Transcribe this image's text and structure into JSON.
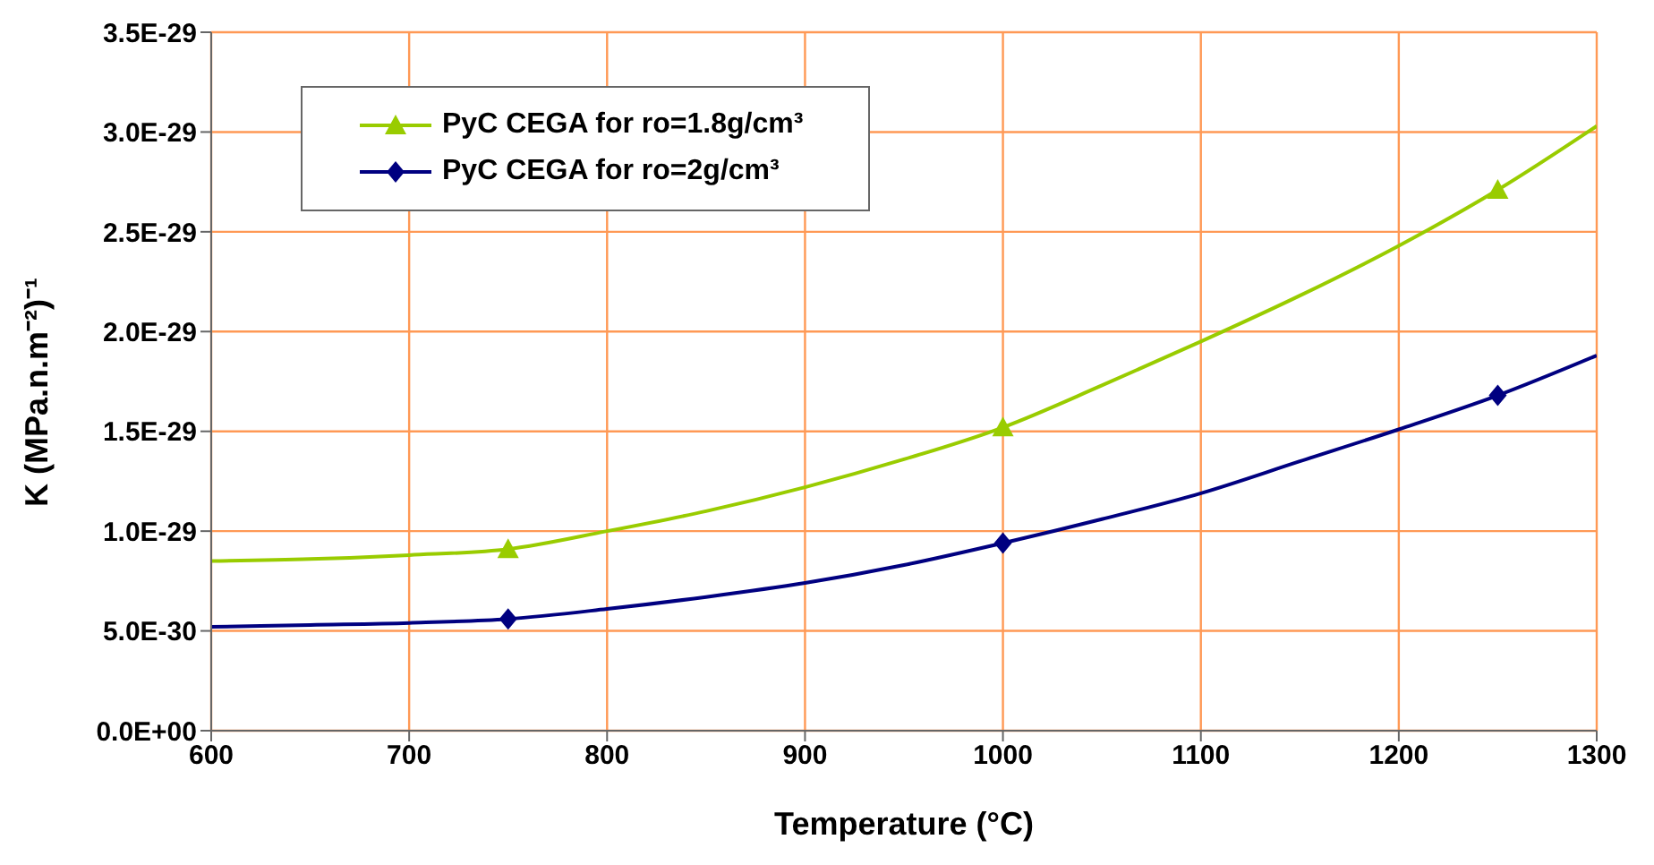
{
  "chart_data": {
    "type": "line",
    "xlabel": "Temperature (°C)",
    "ylabel": "K (MPa.n.m⁻²)⁻¹",
    "xlim": [
      600,
      1300
    ],
    "xticks": [
      600,
      700,
      800,
      900,
      1000,
      1100,
      1200,
      1300
    ],
    "ylim": [
      0,
      3.5e-29
    ],
    "yticks": [
      {
        "value": 0,
        "label": "0.0E+00"
      },
      {
        "value": 5e-30,
        "label": "5.0E-30"
      },
      {
        "value": 1e-29,
        "label": "1.0E-29"
      },
      {
        "value": 1.5e-29,
        "label": "1.5E-29"
      },
      {
        "value": 2e-29,
        "label": "2.0E-29"
      },
      {
        "value": 2.5e-29,
        "label": "2.5E-29"
      },
      {
        "value": 3e-29,
        "label": "3.0E-29"
      },
      {
        "value": 3.5e-29,
        "label": "3.5E-29"
      }
    ],
    "grid": true,
    "legend": "top left",
    "marker": "none",
    "series": [
      {
        "color": "#99cc00",
        "x": [
          600,
          650,
          700,
          750,
          800,
          850,
          900,
          950,
          1000,
          1050,
          1100,
          1150,
          1200,
          1250,
          1300
        ],
        "values": [
          8.5e-30,
          8.6e-30,
          8.8e-30,
          9.1e-30,
          1e-29,
          1.1e-29,
          1.22e-29,
          1.36e-29,
          1.52e-29,
          1.73e-29,
          1.95e-29,
          2.18e-29,
          2.43e-29,
          2.71e-29,
          3.03e-29
        ]
      },
      {
        "color": "#000080",
        "x": [
          600,
          650,
          700,
          750,
          800,
          850,
          900,
          950,
          1000,
          1050,
          1100,
          1150,
          1200,
          1250,
          1300
        ],
        "values": [
          5.2e-30,
          5.3e-30,
          5.4e-30,
          5.6e-30,
          6.1e-30,
          6.7e-30,
          7.4e-30,
          8.3e-30,
          9.4e-30,
          1.06e-29,
          1.19e-29,
          1.35e-29,
          1.51e-29,
          1.68e-29,
          1.88e-29
        ]
      },
      {
        "type": "scatter",
        "marker": "triangle",
        "name": "PyC CEGA for ro=1.8g/cm³",
        "color": "#99cc00",
        "x": [
          750,
          1000,
          1250
        ],
        "values": [
          9.1e-30,
          1.52e-29,
          2.71e-29
        ]
      },
      {
        "type": "scatter",
        "marker": "diamond",
        "name": "PyC CEGA for ro=2g/cm³",
        "color": "#000080",
        "x": [
          750,
          1000,
          1250
        ],
        "values": [
          5.6e-30,
          9.4e-30,
          1.68e-29
        ]
      }
    ]
  }
}
